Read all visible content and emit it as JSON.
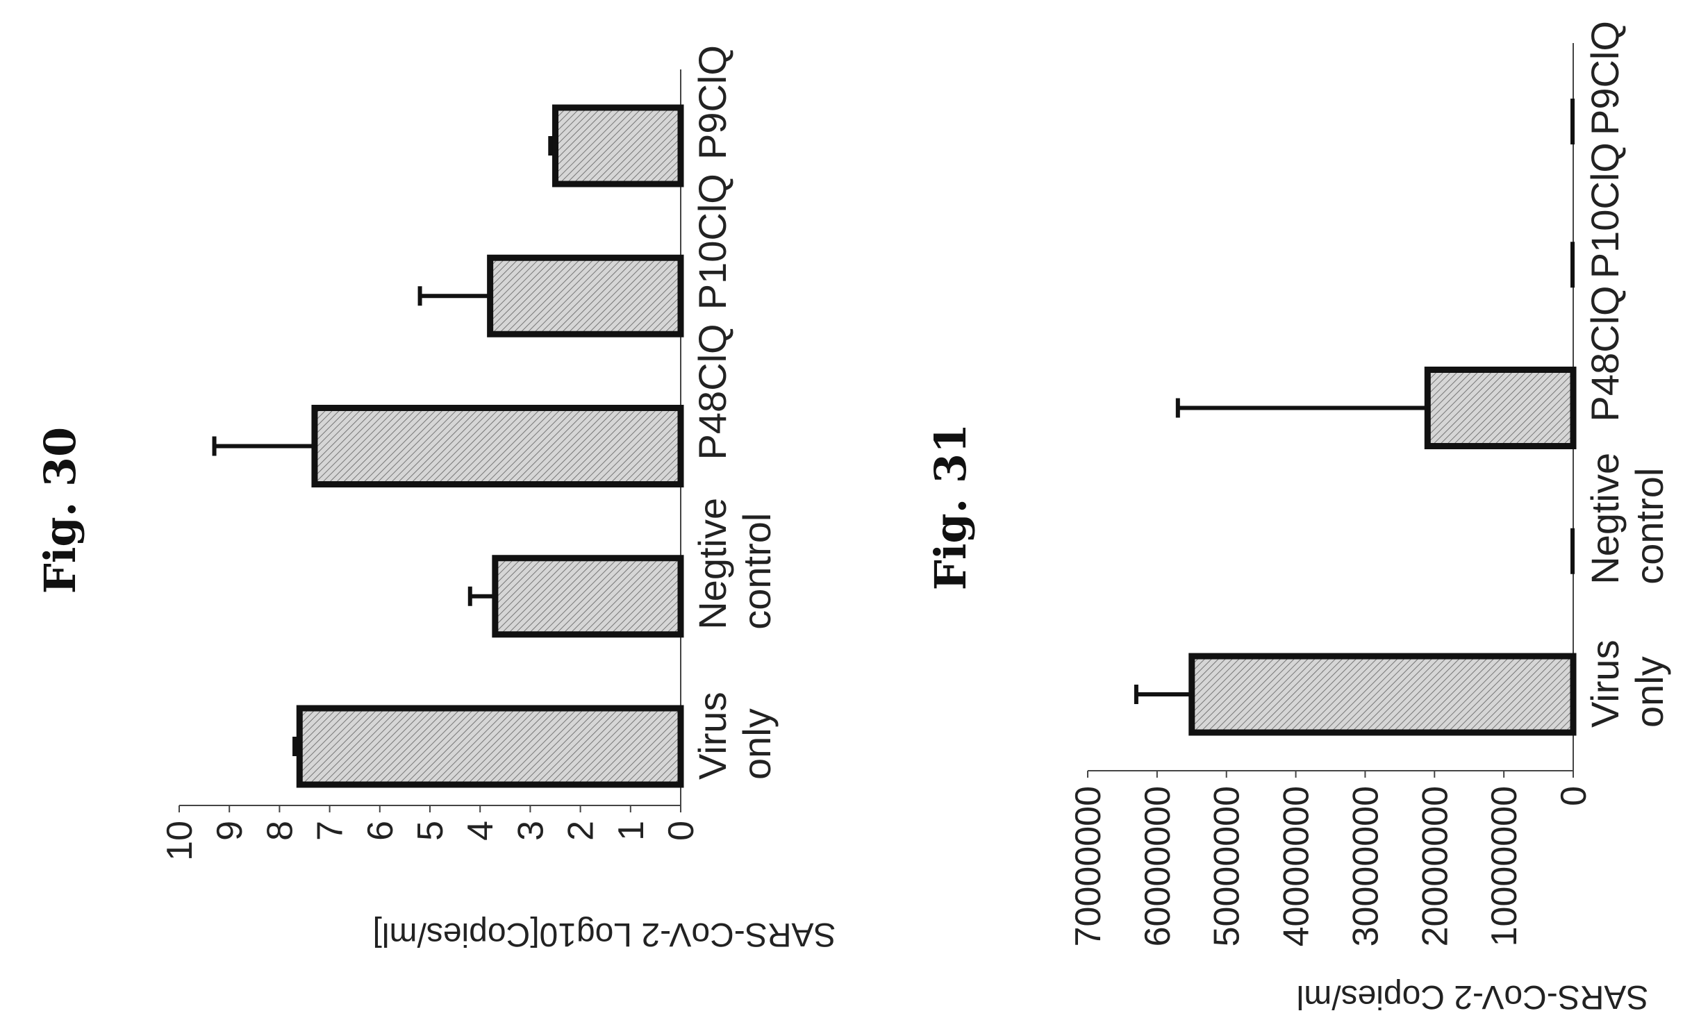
{
  "chart_data": [
    {
      "type": "bar",
      "title": "Fig. 30",
      "ylabel": "SARS-CoV-2 Log10[Copies/ml]",
      "categories": [
        "Virus only",
        "Negtive control",
        "P48ClQ",
        "P10ClQ",
        "P9ClQ"
      ],
      "values": [
        7.6,
        3.7,
        7.3,
        3.8,
        2.5
      ],
      "errors": [
        0.1,
        0.5,
        2.0,
        1.4,
        0.1
      ],
      "ylim": [
        0,
        10
      ],
      "yticks": [
        "0",
        "1",
        "2",
        "3",
        "4",
        "5",
        "6",
        "7",
        "8",
        "9",
        "10"
      ],
      "grid": false
    },
    {
      "type": "bar",
      "title": "Fig. 31",
      "ylabel": "SARS-CoV-2 Copies/ml",
      "categories": [
        "Virus only",
        "Negtive control",
        "P48ClQ",
        "P10ClQ",
        "P9ClQ"
      ],
      "values": [
        55000000,
        0,
        21000000,
        0,
        0
      ],
      "errors": [
        8000000,
        0,
        36000000,
        0,
        0
      ],
      "ylim": [
        0,
        70000000
      ],
      "yticks": [
        "0",
        "10000000",
        "20000000",
        "30000000",
        "40000000",
        "50000000",
        "60000000",
        "70000000"
      ],
      "grid": false
    }
  ]
}
